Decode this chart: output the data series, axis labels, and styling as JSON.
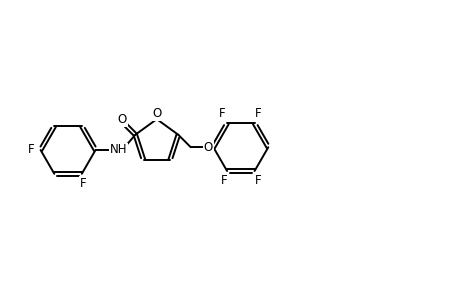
{
  "background_color": "#ffffff",
  "line_color": "#000000",
  "line_width": 1.4,
  "font_size": 8.5,
  "figsize": [
    4.6,
    3.0
  ],
  "dpi": 100,
  "xlim": [
    0,
    46
  ],
  "ylim": [
    0,
    30
  ]
}
